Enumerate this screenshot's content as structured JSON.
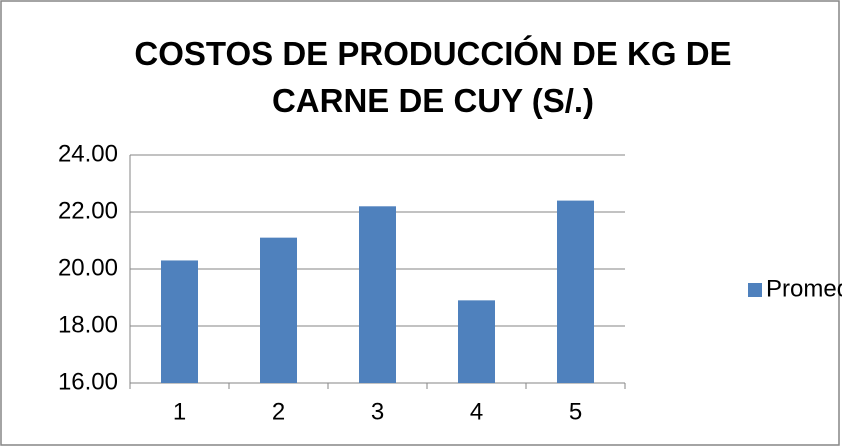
{
  "chart_data": {
    "type": "bar",
    "title": "COSTOS DE PRODUCCIÓN DE KG DE CARNE DE CUY (S/.)",
    "categories": [
      "1",
      "2",
      "3",
      "4",
      "5"
    ],
    "series": [
      {
        "name": "Promedio",
        "color": "#4f81bd",
        "values": [
          20.3,
          21.1,
          22.2,
          18.9,
          22.4
        ]
      }
    ],
    "ylim": [
      16,
      24
    ],
    "yticks": [
      {
        "value": 16,
        "label": "16.00"
      },
      {
        "value": 18,
        "label": "18.00"
      },
      {
        "value": 20,
        "label": "20.00"
      },
      {
        "value": 22,
        "label": "22.00"
      },
      {
        "value": 24,
        "label": "24.00"
      }
    ],
    "grid": true,
    "legend": "right"
  }
}
